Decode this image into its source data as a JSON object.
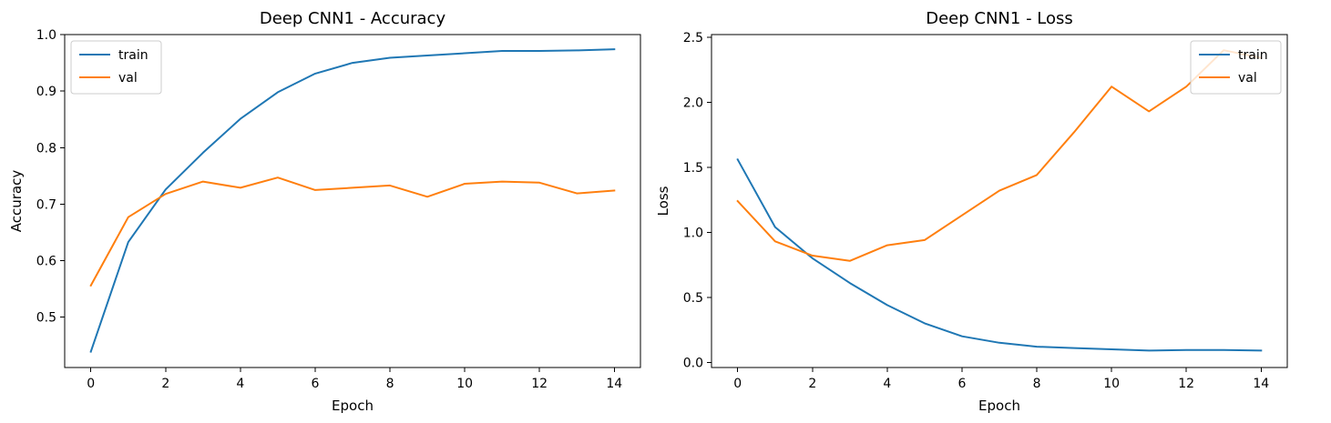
{
  "chart_data": [
    {
      "type": "line",
      "title": "Deep CNN1 - Accuracy",
      "xlabel": "Epoch",
      "ylabel": "Accuracy",
      "xlim": [
        -0.7,
        14.7
      ],
      "ylim": [
        0.411,
        1.0
      ],
      "xticks": [
        0,
        2,
        4,
        6,
        8,
        10,
        12,
        14
      ],
      "yticks": [
        0.5,
        0.6,
        0.7,
        0.8,
        0.9,
        1.0
      ],
      "ytick_labels": [
        "0.5",
        "0.6",
        "0.7",
        "0.8",
        "0.9",
        "1.0"
      ],
      "legend": "upper-left",
      "x": [
        0,
        1,
        2,
        3,
        4,
        5,
        6,
        7,
        8,
        9,
        10,
        11,
        12,
        13,
        14
      ],
      "series": [
        {
          "name": "train",
          "color": "#1f77b4",
          "values": [
            0.439,
            0.633,
            0.726,
            0.791,
            0.851,
            0.898,
            0.931,
            0.95,
            0.959,
            0.963,
            0.967,
            0.971,
            0.971,
            0.972,
            0.974
          ]
        },
        {
          "name": "val",
          "color": "#ff7f0e",
          "values": [
            0.556,
            0.677,
            0.718,
            0.74,
            0.729,
            0.747,
            0.725,
            0.729,
            0.733,
            0.713,
            0.736,
            0.74,
            0.738,
            0.719,
            0.724
          ]
        }
      ]
    },
    {
      "type": "line",
      "title": "Deep CNN1 - Loss",
      "xlabel": "Epoch",
      "ylabel": "Loss",
      "xlim": [
        -0.7,
        14.7
      ],
      "ylim": [
        -0.04,
        2.52
      ],
      "xticks": [
        0,
        2,
        4,
        6,
        8,
        10,
        12,
        14
      ],
      "yticks": [
        0.0,
        0.5,
        1.0,
        1.5,
        2.0,
        2.5
      ],
      "ytick_labels": [
        "0.0",
        "0.5",
        "1.0",
        "1.5",
        "2.0",
        "2.5"
      ],
      "legend": "upper-right",
      "x": [
        0,
        1,
        2,
        3,
        4,
        5,
        6,
        7,
        8,
        9,
        10,
        11,
        12,
        13,
        14
      ],
      "series": [
        {
          "name": "train",
          "color": "#1f77b4",
          "values": [
            1.56,
            1.04,
            0.8,
            0.61,
            0.44,
            0.3,
            0.2,
            0.15,
            0.12,
            0.11,
            0.1,
            0.09,
            0.095,
            0.095,
            0.09
          ]
        },
        {
          "name": "val",
          "color": "#ff7f0e",
          "values": [
            1.24,
            0.93,
            0.82,
            0.78,
            0.9,
            0.94,
            1.13,
            1.32,
            1.44,
            1.77,
            2.12,
            1.93,
            2.12,
            2.4,
            2.34
          ]
        }
      ]
    }
  ]
}
